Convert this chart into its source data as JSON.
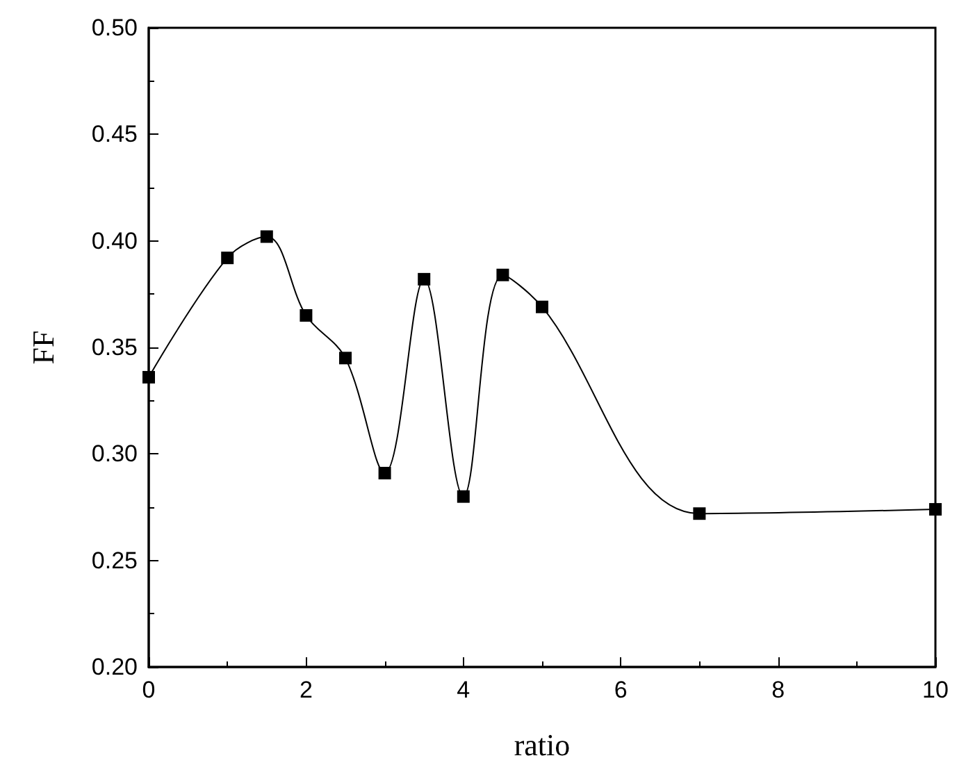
{
  "chart_data": {
    "type": "line",
    "xlabel": "ratio",
    "ylabel": "FF",
    "x": [
      0,
      1,
      1.5,
      2,
      2.5,
      3,
      3.5,
      4,
      4.5,
      5,
      7,
      10
    ],
    "series": [
      {
        "color": "#000000",
        "values": [
          0.336,
          0.392,
          0.402,
          0.365,
          0.345,
          0.291,
          0.382,
          0.28,
          0.384,
          0.369,
          0.272,
          0.274
        ]
      }
    ],
    "xlim": [
      0,
      10
    ],
    "xticks": [
      0,
      2,
      4,
      6,
      8,
      10
    ],
    "ylim": [
      0.2,
      0.5
    ],
    "yticks": [
      {
        "value": 0.2,
        "label": "0.20"
      },
      {
        "value": 0.25,
        "label": "0.25"
      },
      {
        "value": 0.3,
        "label": "0.30"
      },
      {
        "value": 0.35,
        "label": "0.35"
      },
      {
        "value": 0.4,
        "label": "0.40"
      },
      {
        "value": 0.45,
        "label": "0.45"
      },
      {
        "value": 0.5,
        "label": "0.50"
      }
    ],
    "marker": "square",
    "line_style": "solid"
  }
}
